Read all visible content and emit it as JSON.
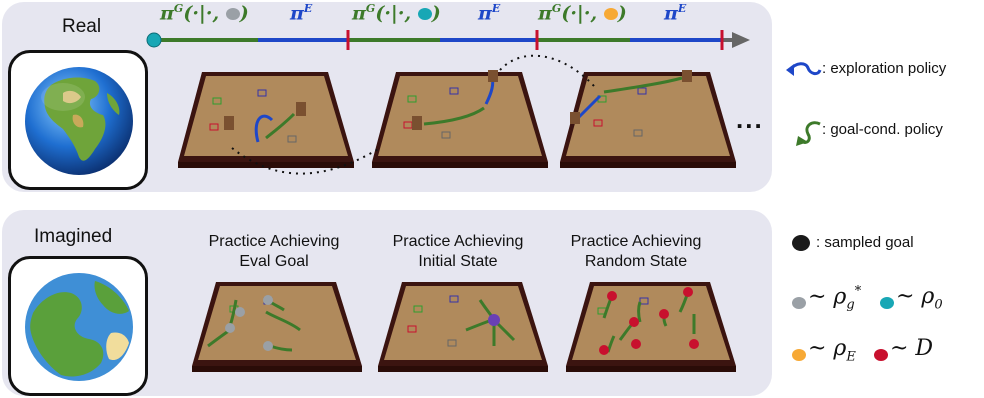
{
  "rows": {
    "real_label": "Real",
    "imagined_label": "Imagined"
  },
  "timeline": {
    "segments": [
      {
        "kind": "goal",
        "label_pi": "π",
        "label_sup": "G",
        "label_args": "(·|·, ",
        "label_close": ")",
        "ball_color": "#9aa0a6"
      },
      {
        "kind": "explore",
        "label_pi": "π",
        "label_sup": "E"
      },
      {
        "kind": "goal",
        "label_pi": "π",
        "label_sup": "G",
        "label_args": "(·|·, ",
        "label_close": ")",
        "ball_color": "#18a7b5"
      },
      {
        "kind": "explore",
        "label_pi": "π",
        "label_sup": "E"
      },
      {
        "kind": "goal",
        "label_pi": "π",
        "label_sup": "G",
        "label_args": "(·|·, ",
        "label_close": ")",
        "ball_color": "#f7a935"
      },
      {
        "kind": "explore",
        "label_pi": "π",
        "label_sup": "E"
      }
    ],
    "goal_color": "#3d7a2a",
    "explore_color": "#1e47c8",
    "tick_color": "#c8102e"
  },
  "ellipsis": "...",
  "practice": [
    {
      "line1": "Practice Achieving",
      "line2": "Eval Goal"
    },
    {
      "line1": "Practice Achieving",
      "line2": "Initial State"
    },
    {
      "line1": "Practice Achieving",
      "line2": "Random State"
    }
  ],
  "legend": {
    "exploration": ": exploration policy",
    "goal_cond": ": goal-cond. policy",
    "sampled_goal": ": sampled goal",
    "eval_dist": {
      "sym": "~ ρ",
      "sub": "g",
      "sup": "*"
    },
    "init_dist": {
      "sym": "~ ρ",
      "sub": "0"
    },
    "explore_dist": {
      "sym": "~ ρ",
      "sub": "E"
    },
    "data_dist": {
      "sym": "~ D"
    }
  },
  "colors": {
    "gray_ball": "#9aa0a6",
    "cyan_ball": "#18a7b5",
    "orange_ball": "#f7a935",
    "red_ball": "#c8102e",
    "black_ball": "#1a1a1a",
    "purple_ball": "#6a3fb5"
  }
}
